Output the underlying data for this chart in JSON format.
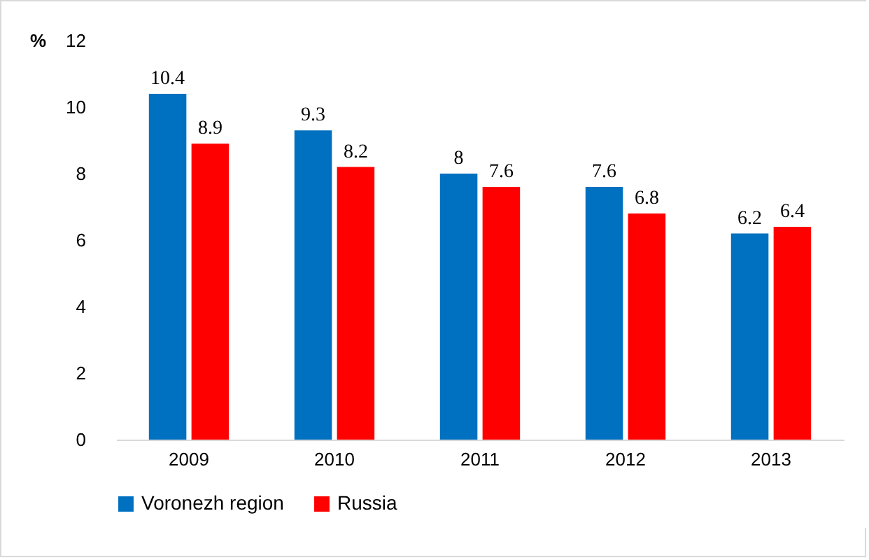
{
  "chart_data": {
    "type": "bar",
    "ylabel": "%",
    "categories": [
      "2009",
      "2010",
      "2011",
      "2012",
      "2013"
    ],
    "series": [
      {
        "name": "Voronezh region",
        "color": "#0070c0",
        "values": [
          10.4,
          9.3,
          8,
          7.6,
          6.2
        ]
      },
      {
        "name": "Russia",
        "color": "#ff0000",
        "values": [
          8.9,
          8.2,
          7.6,
          6.8,
          6.4
        ]
      }
    ],
    "ylim": [
      0,
      12
    ],
    "yticks": [
      0,
      2,
      4,
      6,
      8,
      10,
      12
    ],
    "data_labels": true,
    "legend": "bottom",
    "grid": false
  }
}
